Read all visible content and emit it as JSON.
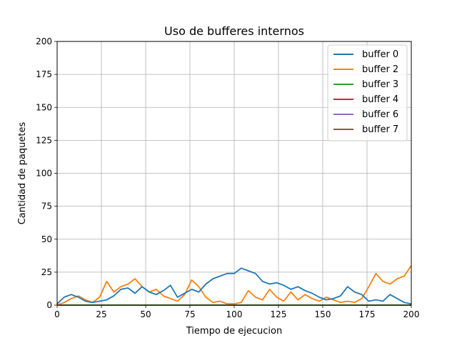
{
  "chart_data": {
    "type": "line",
    "title": "Uso de bufferes internos",
    "xlabel": "Tiempo de ejecucion",
    "ylabel": "Cantidad de paquetes",
    "xlim": [
      0,
      200
    ],
    "ylim": [
      0,
      200
    ],
    "xticks": [
      0,
      25,
      50,
      75,
      100,
      125,
      150,
      175,
      200
    ],
    "yticks": [
      0,
      25,
      50,
      75,
      100,
      125,
      150,
      175,
      200
    ],
    "grid": true,
    "legend_position": "top-right",
    "series": [
      {
        "name": "buffer 0",
        "color": "#1f77b4",
        "x": [
          0,
          4,
          8,
          12,
          16,
          20,
          24,
          28,
          32,
          36,
          40,
          44,
          48,
          52,
          56,
          60,
          64,
          68,
          72,
          76,
          80,
          84,
          88,
          92,
          96,
          100,
          104,
          108,
          112,
          116,
          120,
          124,
          128,
          132,
          136,
          140,
          144,
          148,
          152,
          156,
          160,
          164,
          168,
          172,
          176,
          180,
          184,
          188,
          192,
          196,
          200
        ],
        "y": [
          1,
          6,
          8,
          6,
          3,
          2,
          3,
          4,
          7,
          12,
          13,
          9,
          14,
          10,
          8,
          11,
          15,
          6,
          9,
          12,
          10,
          16,
          20,
          22,
          24,
          24,
          28,
          26,
          24,
          18,
          16,
          17,
          15,
          12,
          14,
          11,
          9,
          6,
          4,
          5,
          7,
          14,
          10,
          8,
          3,
          4,
          3,
          8,
          5,
          2,
          1
        ]
      },
      {
        "name": "buffer 2",
        "color": "#ff7f0e",
        "x": [
          0,
          4,
          8,
          12,
          16,
          20,
          24,
          28,
          32,
          36,
          40,
          44,
          48,
          52,
          56,
          60,
          64,
          68,
          72,
          76,
          80,
          84,
          88,
          92,
          96,
          100,
          104,
          108,
          112,
          116,
          120,
          124,
          128,
          132,
          136,
          140,
          144,
          148,
          152,
          156,
          160,
          164,
          168,
          172,
          176,
          180,
          184,
          188,
          192,
          196,
          200
        ],
        "y": [
          0,
          2,
          5,
          7,
          4,
          2,
          6,
          18,
          10,
          14,
          16,
          20,
          14,
          10,
          12,
          7,
          5,
          3,
          8,
          19,
          14,
          6,
          2,
          3,
          1,
          1,
          2,
          11,
          6,
          4,
          12,
          6,
          3,
          10,
          4,
          8,
          5,
          3,
          6,
          4,
          2,
          3,
          2,
          5,
          14,
          24,
          18,
          16,
          20,
          22,
          30
        ]
      },
      {
        "name": "buffer 3",
        "color": "#2ca02c",
        "x": [
          0,
          200
        ],
        "y": [
          0,
          0
        ]
      },
      {
        "name": "buffer 4",
        "color": "#d62728",
        "x": [
          0,
          200
        ],
        "y": [
          0,
          0
        ]
      },
      {
        "name": "buffer 6",
        "color": "#9467bd",
        "x": [
          0,
          200
        ],
        "y": [
          0,
          0
        ]
      },
      {
        "name": "buffer 7",
        "color": "#8c564b",
        "x": [
          0,
          200
        ],
        "y": [
          0,
          0
        ]
      }
    ]
  }
}
